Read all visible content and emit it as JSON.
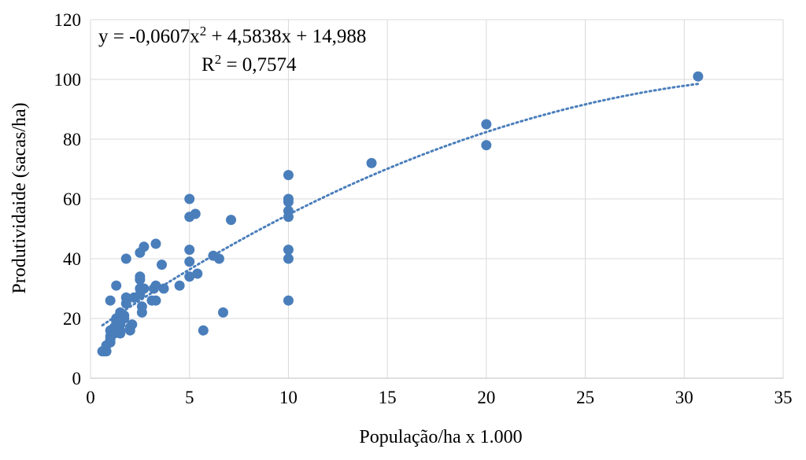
{
  "chart_data": {
    "type": "scatter",
    "title": "",
    "xlabel": "População/ha x 1.000",
    "ylabel": "Produtividaide (sacas/ha)",
    "xlim": [
      0,
      35
    ],
    "ylim": [
      0,
      120
    ],
    "x_ticks": [
      0,
      5,
      10,
      15,
      20,
      25,
      30,
      35
    ],
    "y_ticks": [
      0,
      20,
      40,
      60,
      80,
      100,
      120
    ],
    "grid": true,
    "legend": "none",
    "colors": {
      "points": "#4a7ebb",
      "trendline": "#4a7ebb"
    },
    "trendline": {
      "type": "polynomial",
      "order": 2,
      "coefficients": [
        -0.0607,
        4.5838,
        14.988
      ],
      "x_range": [
        0.6,
        30.7
      ],
      "equation_prefix": "y = -0,0607x",
      "equation_sup": "2",
      "equation_suffix": " + 4,5838x + 14,988",
      "r2_prefix": "R",
      "r2_sup": "2",
      "r2_suffix": " = 0,7574"
    },
    "series": [
      {
        "points": [
          [
            0.6,
            9
          ],
          [
            0.7,
            9
          ],
          [
            0.8,
            9
          ],
          [
            0.8,
            11
          ],
          [
            1.0,
            12
          ],
          [
            1.0,
            13
          ],
          [
            1.0,
            14
          ],
          [
            1.0,
            16
          ],
          [
            1.0,
            26
          ],
          [
            1.2,
            15
          ],
          [
            1.2,
            17
          ],
          [
            1.3,
            19
          ],
          [
            1.3,
            20
          ],
          [
            1.3,
            31
          ],
          [
            1.5,
            15
          ],
          [
            1.5,
            16
          ],
          [
            1.5,
            18
          ],
          [
            1.5,
            20
          ],
          [
            1.5,
            22
          ],
          [
            1.7,
            20
          ],
          [
            1.7,
            21
          ],
          [
            1.8,
            25
          ],
          [
            1.8,
            27
          ],
          [
            1.8,
            40
          ],
          [
            2.0,
            16
          ],
          [
            2.0,
            17
          ],
          [
            2.1,
            18
          ],
          [
            2.2,
            27
          ],
          [
            2.5,
            28
          ],
          [
            2.5,
            30
          ],
          [
            2.5,
            33
          ],
          [
            2.5,
            34
          ],
          [
            2.5,
            42
          ],
          [
            2.6,
            22
          ],
          [
            2.6,
            24
          ],
          [
            2.7,
            30
          ],
          [
            2.7,
            44
          ],
          [
            3.1,
            26
          ],
          [
            3.2,
            30
          ],
          [
            3.3,
            26
          ],
          [
            3.3,
            31
          ],
          [
            3.3,
            45
          ],
          [
            3.6,
            38
          ],
          [
            3.7,
            30
          ],
          [
            4.5,
            31
          ],
          [
            5.0,
            34
          ],
          [
            5.0,
            39
          ],
          [
            5.0,
            43
          ],
          [
            5.0,
            54
          ],
          [
            5.0,
            60
          ],
          [
            5.3,
            55
          ],
          [
            5.4,
            35
          ],
          [
            5.7,
            16
          ],
          [
            6.2,
            41
          ],
          [
            6.5,
            40
          ],
          [
            6.7,
            22
          ],
          [
            7.1,
            53
          ],
          [
            10.0,
            26
          ],
          [
            10.0,
            40
          ],
          [
            10.0,
            43
          ],
          [
            10.0,
            54
          ],
          [
            10.0,
            56
          ],
          [
            10.0,
            59
          ],
          [
            10.0,
            60
          ],
          [
            10.0,
            68
          ],
          [
            14.2,
            72
          ],
          [
            20.0,
            78
          ],
          [
            20.0,
            85
          ],
          [
            30.7,
            101
          ]
        ]
      }
    ]
  }
}
